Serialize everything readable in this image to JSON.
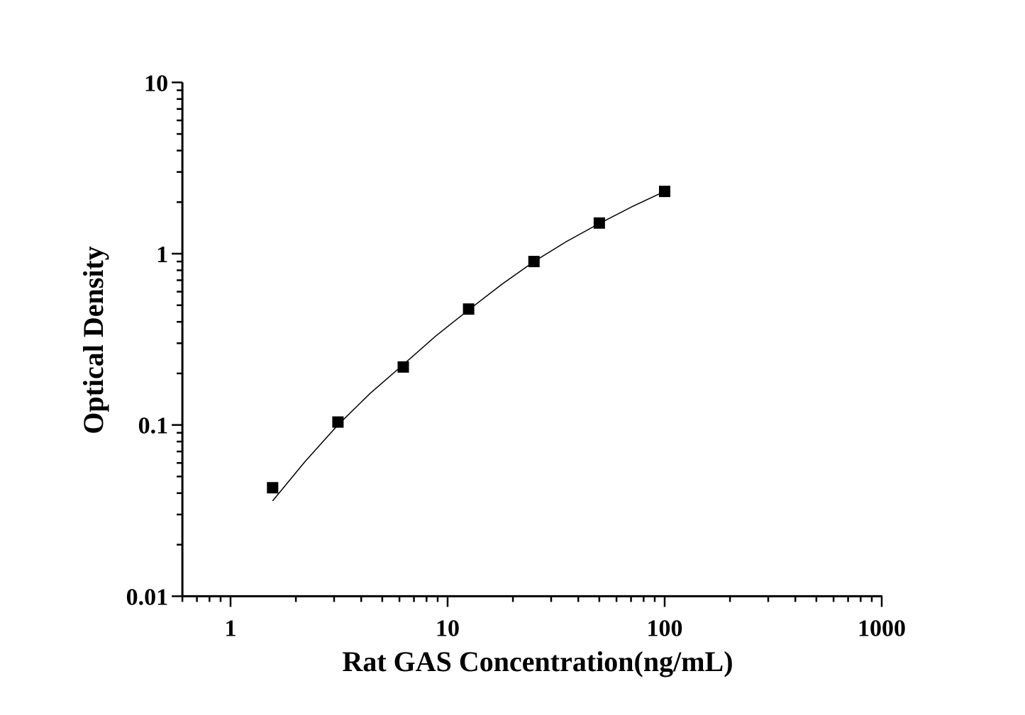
{
  "chart_data": {
    "type": "scatter",
    "title": "",
    "xlabel": "Rat GAS Concentration(ng/mL)",
    "ylabel": "Optical Density",
    "xscale": "log",
    "yscale": "log",
    "xlim": [
      0.6,
      1000
    ],
    "ylim": [
      0.01,
      10
    ],
    "xticks": [
      1,
      10,
      100,
      1000
    ],
    "xtick_labels": [
      "1",
      "10",
      "100",
      "1000"
    ],
    "yticks": [
      0.01,
      0.1,
      1,
      10
    ],
    "ytick_labels": [
      "0.01",
      "0.1",
      "1",
      "10"
    ],
    "grid": false,
    "marker": "square",
    "color": "#000000",
    "points": {
      "x": [
        1.5625,
        3.125,
        6.25,
        12.5,
        25,
        50,
        100
      ],
      "y": [
        0.043,
        0.104,
        0.218,
        0.475,
        0.9,
        1.51,
        2.31
      ]
    },
    "fit_curve": {
      "x": [
        1.5625,
        2.2,
        3.125,
        4.4,
        6.25,
        8.8,
        12.5,
        17.7,
        25,
        35.4,
        50,
        70.7,
        100
      ],
      "y": [
        0.036,
        0.061,
        0.1,
        0.153,
        0.225,
        0.33,
        0.47,
        0.66,
        0.9,
        1.18,
        1.5,
        1.88,
        2.31
      ]
    }
  }
}
